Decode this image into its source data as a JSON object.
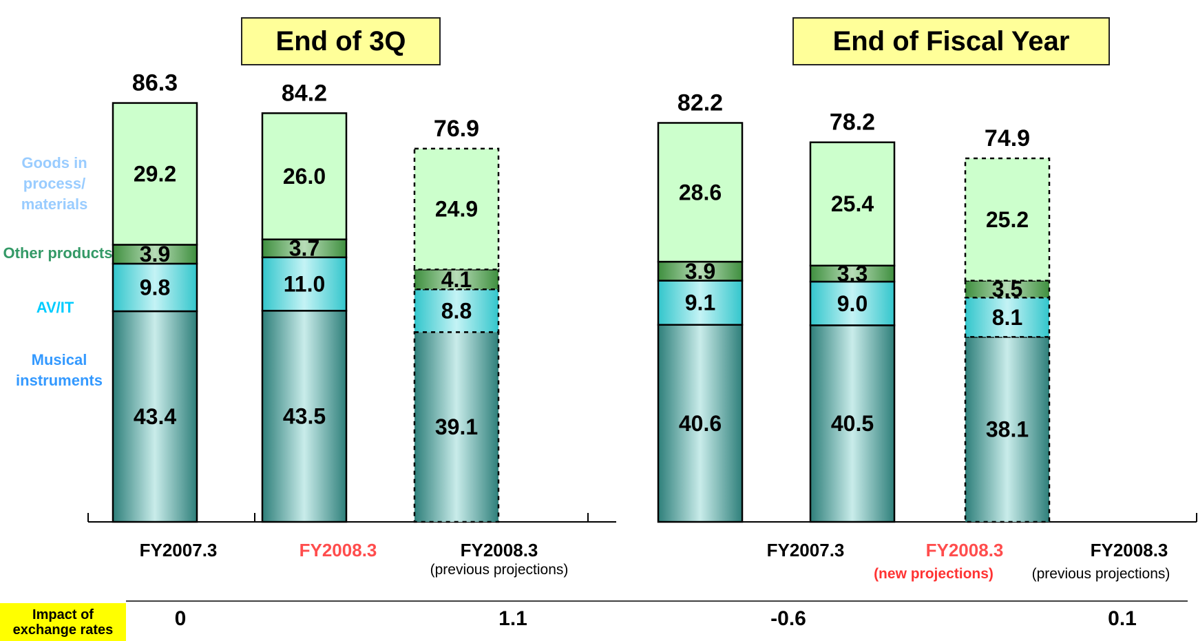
{
  "chart_data": [
    {
      "type": "bar",
      "stacked": true,
      "title": "End of 3Q",
      "categories": [
        "FY2007.3",
        "FY2008.3",
        "FY2008.3"
      ],
      "category_notes": [
        "",
        "",
        "(previous projections)"
      ],
      "series": [
        {
          "name": "Musical instruments",
          "values": [
            43.4,
            43.5,
            39.1
          ]
        },
        {
          "name": "AV/IT",
          "values": [
            9.8,
            11.0,
            8.8
          ]
        },
        {
          "name": "Other products",
          "values": [
            3.9,
            3.7,
            4.1
          ]
        },
        {
          "name": "Goods in process/ materials",
          "values": [
            29.2,
            26.0,
            24.9
          ]
        }
      ],
      "totals": [
        86.3,
        84.2,
        76.9
      ],
      "value_labels": [
        [
          "43.4",
          "9.8",
          "3.9",
          "29.2"
        ],
        [
          "43.5",
          "11.0",
          "3.7",
          "26.0"
        ],
        [
          "39.1",
          "8.8",
          "4.1",
          "24.9"
        ]
      ],
      "total_labels": [
        "86.3",
        "84.2",
        "76.9"
      ],
      "dashed": [
        false,
        false,
        true
      ],
      "highlight_category_color": [
        "#000000",
        "#ff4d4d",
        "#000000"
      ]
    },
    {
      "type": "bar",
      "stacked": true,
      "title": "End of Fiscal Year",
      "categories": [
        "FY2007.3",
        "FY2008.3",
        "FY2008.3"
      ],
      "category_notes": [
        "",
        "(new projections)",
        "(previous projections)"
      ],
      "series": [
        {
          "name": "Musical instruments",
          "values": [
            40.6,
            40.5,
            38.1
          ]
        },
        {
          "name": "AV/IT",
          "values": [
            9.1,
            9.0,
            8.1
          ]
        },
        {
          "name": "Other products",
          "values": [
            3.9,
            3.3,
            3.5
          ]
        },
        {
          "name": "Goods in process/ materials",
          "values": [
            28.6,
            25.4,
            25.2
          ]
        }
      ],
      "totals": [
        82.2,
        78.2,
        74.9
      ],
      "value_labels": [
        [
          "40.6",
          "9.1",
          "3.9",
          "28.6"
        ],
        [
          "40.5",
          "9.0",
          "3.3",
          "25.4"
        ],
        [
          "38.1",
          "8.1",
          "3.5",
          "25.2"
        ]
      ],
      "total_labels": [
        "82.2",
        "78.2",
        "74.9"
      ],
      "dashed": [
        false,
        false,
        true
      ],
      "highlight_category_color": [
        "#000000",
        "#ff4d4d",
        "#000000"
      ]
    }
  ],
  "legend": {
    "goods": "Goods in process/ materials",
    "other": "Other products",
    "avit": "AV/IT",
    "musical": "Musical instruments"
  },
  "colors": {
    "goods_label": "#99ccff",
    "other_label": "#339966",
    "avit_label": "#00ccff",
    "musical_label": "#3399ff",
    "highlight": "#ff4d4d"
  },
  "impact": {
    "label": "Impact of exchange rates",
    "values": [
      "0",
      "1.1",
      "-0.6",
      "0.1"
    ]
  }
}
